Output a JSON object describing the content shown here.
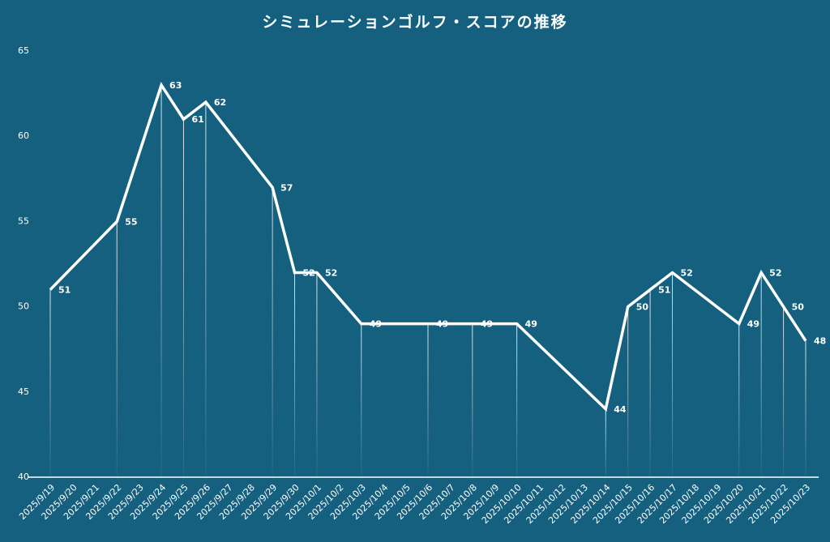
{
  "chart_data": {
    "type": "line",
    "title": "シミュレーションゴルフ・スコアの推移",
    "x": [
      "2025/9/19",
      "2025/9/22",
      "2025/9/24",
      "2025/9/25",
      "2025/9/26",
      "2025/9/29",
      "2025/9/30",
      "2025/10/1",
      "2025/10/3",
      "2025/10/6",
      "2025/10/8",
      "2025/10/10",
      "2025/10/14",
      "2025/10/15",
      "2025/10/16",
      "2025/10/17",
      "2025/10/20",
      "2025/10/21",
      "2025/10/22",
      "2025/10/23"
    ],
    "series": [
      {
        "name": "スコア",
        "color": "#ffffff",
        "values": [
          51,
          55,
          63,
          61,
          62,
          57,
          52,
          52,
          49,
          49,
          49,
          49,
          44,
          50,
          51,
          52,
          49,
          52,
          50,
          48
        ]
      }
    ],
    "xlim": [
      "2025/9/19",
      "2025/10/23"
    ],
    "xticks": [
      "2025/9/19",
      "2025/9/20",
      "2025/9/21",
      "2025/9/22",
      "2025/9/23",
      "2025/9/24",
      "2025/9/25",
      "2025/9/26",
      "2025/9/27",
      "2025/9/28",
      "2025/9/29",
      "2025/9/30",
      "2025/10/1",
      "2025/10/2",
      "2025/10/3",
      "2025/10/4",
      "2025/10/5",
      "2025/10/6",
      "2025/10/7",
      "2025/10/8",
      "2025/10/9",
      "2025/10/10",
      "2025/10/11",
      "2025/10/12",
      "2025/10/13",
      "2025/10/14",
      "2025/10/15",
      "2025/10/16",
      "2025/10/17",
      "2025/10/18",
      "2025/10/19",
      "2025/10/20",
      "2025/10/21",
      "2025/10/22",
      "2025/10/23"
    ],
    "ylim": [
      40,
      65
    ],
    "yticks": [
      40,
      45,
      50,
      55,
      60,
      65
    ],
    "grid": false
  }
}
